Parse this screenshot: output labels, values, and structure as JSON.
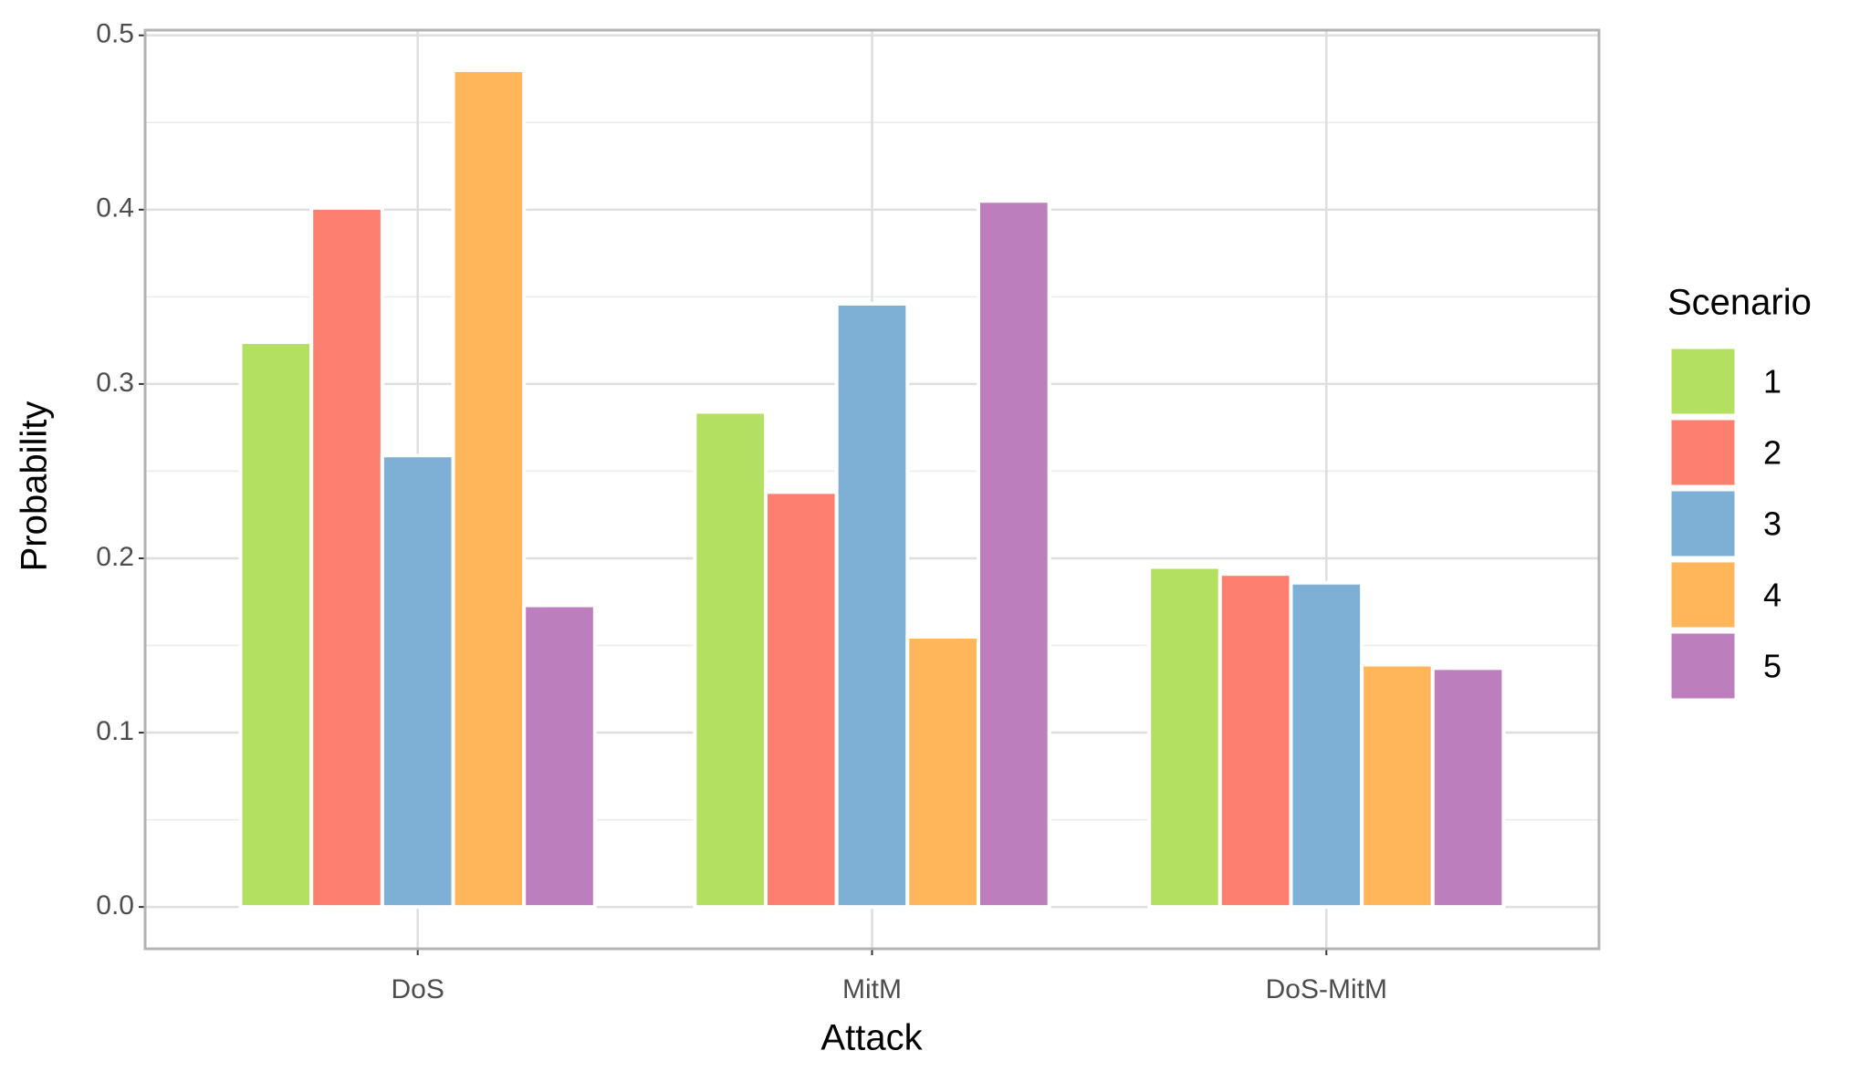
{
  "chart_data": {
    "type": "bar",
    "x_label": "Attack",
    "y_label": "Probability",
    "legend_title": "Scenario",
    "categories": [
      "DoS",
      "MitM",
      "DoS-MitM"
    ],
    "series": [
      {
        "name": "1",
        "color": "#b3e061",
        "values": [
          0.324,
          0.284,
          0.195
        ]
      },
      {
        "name": "2",
        "color": "#fd7f6f",
        "values": [
          0.401,
          0.238,
          0.191
        ]
      },
      {
        "name": "3",
        "color": "#7eb0d5",
        "values": [
          0.259,
          0.346,
          0.186
        ]
      },
      {
        "name": "4",
        "color": "#ffb55a",
        "values": [
          0.48,
          0.155,
          0.139
        ]
      },
      {
        "name": "5",
        "color": "#bd7ebe",
        "values": [
          0.173,
          0.405,
          0.137
        ]
      }
    ],
    "ylim": [
      -0.024,
      0.503
    ],
    "yticks": [
      {
        "value": 0,
        "label": "0.0"
      },
      0.1,
      0.2,
      0.3,
      0.4,
      0.5
    ],
    "yminor_ticks": [
      0.05,
      0.15,
      0.25,
      0.35,
      0.45
    ],
    "grid": true,
    "legend": "right"
  }
}
